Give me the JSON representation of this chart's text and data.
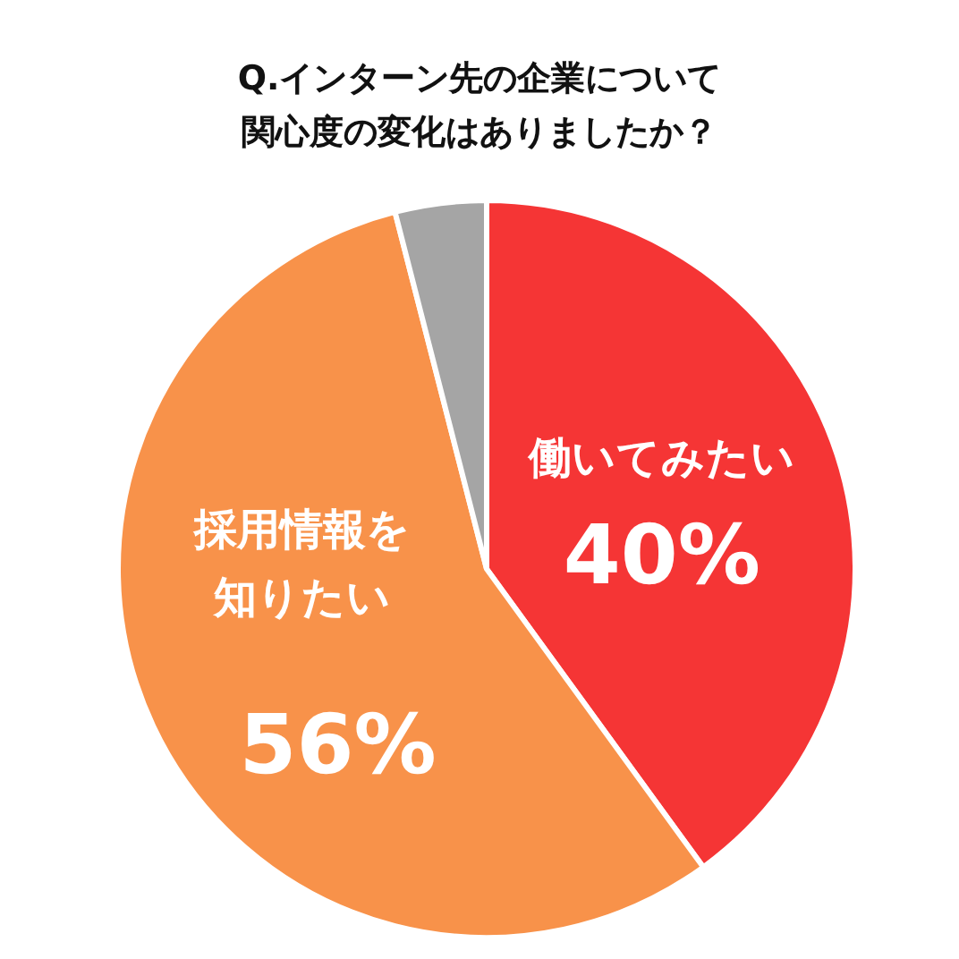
{
  "chart_data": {
    "type": "pie",
    "title": "Q.インターン先の企業について関心度の変化はありましたか？",
    "categories": [
      "働いてみたい",
      "採用情報を知りたい",
      null
    ],
    "values": [
      40,
      56,
      4
    ],
    "colors": [
      "#f53535",
      "#f8924a",
      "#a5a5a5"
    ],
    "value_labels": [
      "40%",
      "56%",
      null
    ]
  }
}
